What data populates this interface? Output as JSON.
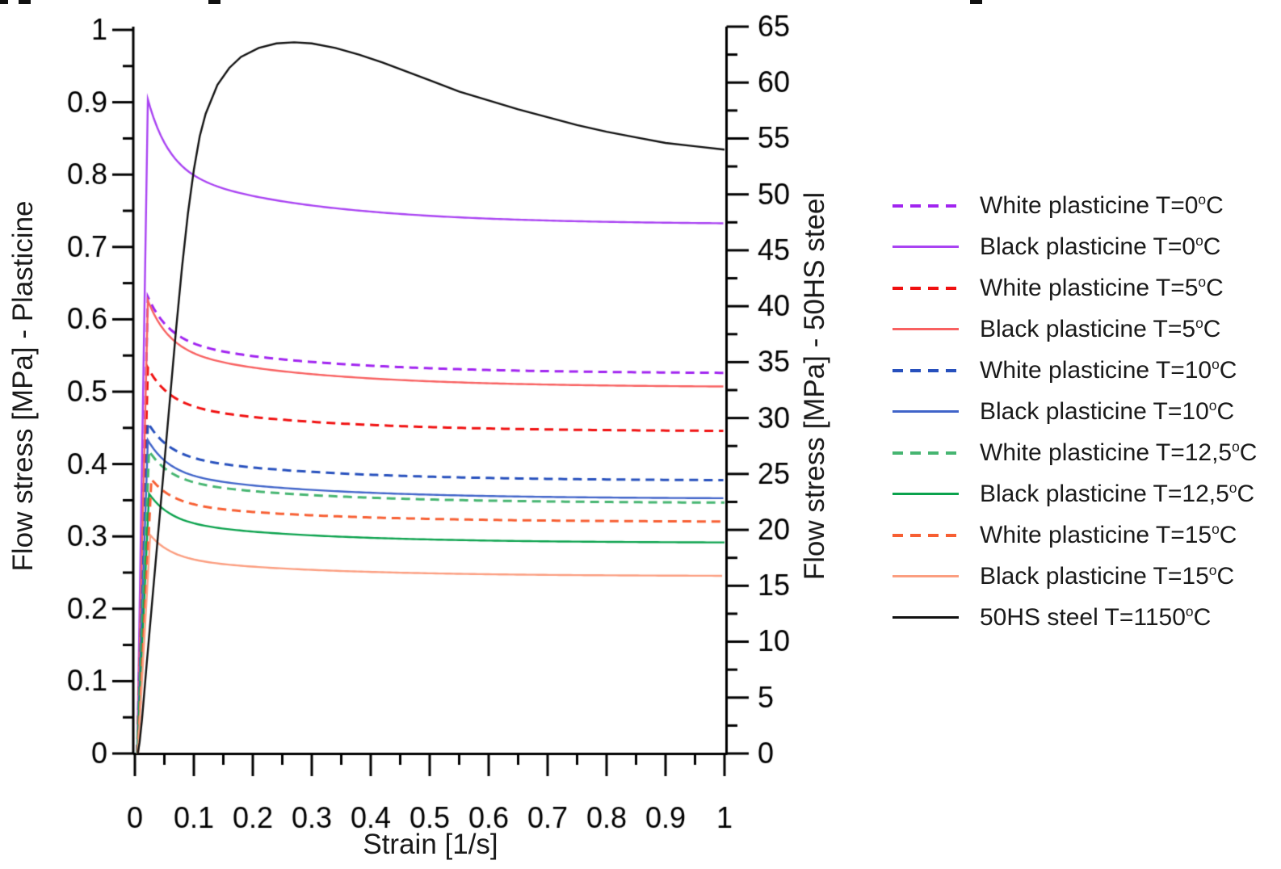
{
  "chart_data": {
    "type": "line",
    "xlabel": "Strain [1/s]",
    "ylabel_left": "Flow stress [MPa] - Plasticine",
    "ylabel_right": "Flow stress [MPa] - 50HS steel",
    "xlim": [
      0,
      1
    ],
    "ylim_left": [
      0,
      1
    ],
    "ylim_right": [
      0,
      65
    ],
    "grid": false,
    "legend_position": "right",
    "x_ticks": [
      0,
      0.1,
      0.2,
      0.3,
      0.4,
      0.5,
      0.6,
      0.7,
      0.8,
      0.9,
      1
    ],
    "x_tick_labels": [
      "0",
      "0.1",
      "0.2",
      "0.3",
      "0.4",
      "0.5",
      "0.6",
      "0.7",
      "0.8",
      "0.9",
      "1"
    ],
    "x_minor_step": 0.05,
    "y_left_ticks": [
      0,
      0.1,
      0.2,
      0.3,
      0.4,
      0.5,
      0.6,
      0.7,
      0.8,
      0.9,
      1
    ],
    "y_left_tick_labels": [
      "0",
      "0.1",
      "0.2",
      "0.3",
      "0.4",
      "0.5",
      "0.6",
      "0.7",
      "0.8",
      "0.9",
      "1"
    ],
    "y_left_minor_step": 0.05,
    "y_right_ticks": [
      0,
      5,
      10,
      15,
      20,
      25,
      30,
      35,
      40,
      45,
      50,
      55,
      60,
      65
    ],
    "y_right_tick_labels": [
      "0",
      "5",
      "10",
      "15",
      "20",
      "25",
      "30",
      "35",
      "40",
      "45",
      "50",
      "55",
      "60",
      "65"
    ],
    "y_right_minor_step": 2.5,
    "series": [
      {
        "label": "White plasticine T=0",
        "unit": "C",
        "axis": "left",
        "style": "dashed",
        "color": "#A124F0",
        "model": "plasticine",
        "rise_start": 0.004,
        "peak_strain": 0.022,
        "peak": 0.631,
        "steady": 0.525
      },
      {
        "label": "Black plasticine T=0",
        "unit": "C",
        "axis": "left",
        "style": "solid",
        "color": "#A943F2",
        "model": "plasticine",
        "rise_start": 0.004,
        "peak_strain": 0.022,
        "peak": 0.904,
        "steady": 0.731
      },
      {
        "label": "White plasticine T=5",
        "unit": "C",
        "axis": "left",
        "style": "dashed",
        "color": "#F01010",
        "model": "plasticine",
        "rise_start": 0.004,
        "peak_strain": 0.022,
        "peak": 0.533,
        "steady": 0.445
      },
      {
        "label": "Black plasticine T=5",
        "unit": "C",
        "axis": "left",
        "style": "solid",
        "color": "#F86161",
        "model": "plasticine",
        "rise_start": 0.004,
        "peak_strain": 0.022,
        "peak": 0.626,
        "steady": 0.506
      },
      {
        "label": "White plasticine T=10",
        "unit": "C",
        "axis": "left",
        "style": "dashed",
        "color": "#2750BD",
        "model": "plasticine",
        "rise_start": 0.004,
        "peak_strain": 0.022,
        "peak": 0.457,
        "steady": 0.377
      },
      {
        "label": "Black plasticine T=10",
        "unit": "C",
        "axis": "left",
        "style": "solid",
        "color": "#4064C9",
        "model": "plasticine",
        "rise_start": 0.004,
        "peak_strain": 0.022,
        "peak": 0.433,
        "steady": 0.352
      },
      {
        "label": "White plasticine T=12,5",
        "unit": "C",
        "axis": "left",
        "style": "dashed",
        "color": "#46B571",
        "model": "plasticine",
        "rise_start": 0.004,
        "peak_strain": 0.024,
        "peak": 0.418,
        "steady": 0.346
      },
      {
        "label": "Black plasticine T=12,5",
        "unit": "C",
        "axis": "left",
        "style": "solid",
        "color": "#0BA24D",
        "model": "plasticine",
        "rise_start": 0.004,
        "peak_strain": 0.024,
        "peak": 0.359,
        "steady": 0.291
      },
      {
        "label": "White plasticine T=15",
        "unit": "C",
        "axis": "left",
        "style": "dashed",
        "color": "#F75F33",
        "model": "plasticine",
        "rise_start": 0.005,
        "peak_strain": 0.028,
        "peak": 0.379,
        "steady": 0.32
      },
      {
        "label": "Black plasticine T=15",
        "unit": "C",
        "axis": "left",
        "style": "solid",
        "color": "#FB9E80",
        "model": "plasticine",
        "rise_start": 0.005,
        "peak_strain": 0.026,
        "peak": 0.302,
        "steady": 0.245
      },
      {
        "label": "50HS steel T=1150",
        "unit": "C",
        "axis": "right",
        "style": "solid",
        "color": "#111111",
        "model": "points",
        "points": [
          [
            0.005,
            0
          ],
          [
            0.008,
            1
          ],
          [
            0.012,
            3
          ],
          [
            0.016,
            5.5
          ],
          [
            0.02,
            8
          ],
          [
            0.025,
            11
          ],
          [
            0.03,
            14
          ],
          [
            0.035,
            17
          ],
          [
            0.04,
            20
          ],
          [
            0.05,
            26
          ],
          [
            0.06,
            32
          ],
          [
            0.07,
            38
          ],
          [
            0.08,
            43.5
          ],
          [
            0.09,
            48.3
          ],
          [
            0.1,
            52.2
          ],
          [
            0.11,
            55.2
          ],
          [
            0.12,
            57.2
          ],
          [
            0.14,
            59.8
          ],
          [
            0.16,
            61.3
          ],
          [
            0.18,
            62.3
          ],
          [
            0.21,
            63.1
          ],
          [
            0.24,
            63.5
          ],
          [
            0.27,
            63.6
          ],
          [
            0.3,
            63.5
          ],
          [
            0.34,
            63.1
          ],
          [
            0.38,
            62.5
          ],
          [
            0.42,
            61.8
          ],
          [
            0.46,
            61.0
          ],
          [
            0.5,
            60.2
          ],
          [
            0.55,
            59.2
          ],
          [
            0.6,
            58.4
          ],
          [
            0.65,
            57.6
          ],
          [
            0.7,
            56.9
          ],
          [
            0.75,
            56.2
          ],
          [
            0.8,
            55.6
          ],
          [
            0.85,
            55.1
          ],
          [
            0.9,
            54.6
          ],
          [
            0.95,
            54.3
          ],
          [
            1.0,
            54.0
          ]
        ]
      }
    ]
  },
  "legend": {
    "degree_glyph": "o"
  },
  "layout_text": {
    "left_axis_title": "Flow stress [MPa] - Plasticine",
    "right_axis_title": "Flow stress [MPa] - 50HS steel",
    "x_axis_title": "Strain [1/s]"
  }
}
